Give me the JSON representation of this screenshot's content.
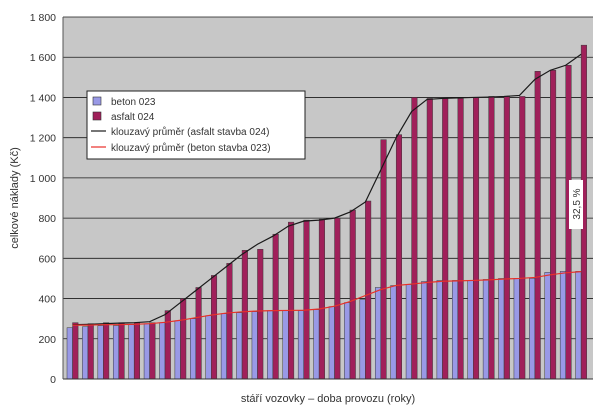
{
  "chart_data": {
    "type": "bar",
    "ylabel": "celkové náklady (Kč)",
    "xlabel": "stáří vozovky – doba provozu (roky)",
    "ylim": [
      0,
      1800
    ],
    "yticks": [
      0,
      200,
      400,
      600,
      800,
      1000,
      1200,
      1400,
      1600,
      1800
    ],
    "ytick_labels": [
      "0",
      "200",
      "400",
      "600",
      "800",
      "1 000",
      "1 200",
      "1 400",
      "1 600",
      "1 800"
    ],
    "grid": "horizontal",
    "legend_position": "left",
    "annotation": "32,5 %",
    "series": [
      {
        "name": "beton 023",
        "kind": "bar",
        "color": "#9999e6",
        "values": [
          255,
          260,
          265,
          265,
          270,
          275,
          280,
          290,
          300,
          315,
          325,
          330,
          335,
          340,
          340,
          340,
          345,
          360,
          380,
          395,
          455,
          465,
          470,
          485,
          490,
          490,
          490,
          495,
          500,
          500,
          500,
          530,
          535,
          535
        ]
      },
      {
        "name": "asfalt 024",
        "kind": "bar",
        "color": "#a0205a",
        "values": [
          280,
          275,
          280,
          280,
          280,
          280,
          340,
          400,
          455,
          515,
          575,
          640,
          645,
          720,
          780,
          790,
          795,
          800,
          840,
          885,
          1190,
          1215,
          1400,
          1395,
          1395,
          1395,
          1400,
          1405,
          1405,
          1405,
          1530,
          1535,
          1560,
          1660
        ]
      },
      {
        "name": "klouzavý průměr (asfalt stavba 024)",
        "kind": "line",
        "color": "#1a1a1a",
        "values": [
          270,
          272,
          275,
          278,
          280,
          285,
          320,
          380,
          440,
          500,
          560,
          620,
          670,
          710,
          760,
          785,
          790,
          800,
          830,
          880,
          1040,
          1200,
          1330,
          1390,
          1395,
          1398,
          1400,
          1402,
          1405,
          1410,
          1490,
          1535,
          1560,
          1615
        ]
      },
      {
        "name": "klouzavý průměr (beton stavba 023)",
        "kind": "line",
        "color": "#e8302a",
        "values": [
          268,
          268,
          270,
          270,
          272,
          275,
          282,
          292,
          305,
          318,
          328,
          334,
          338,
          340,
          341,
          342,
          348,
          362,
          385,
          415,
          445,
          465,
          472,
          480,
          486,
          488,
          490,
          493,
          497,
          500,
          505,
          518,
          528,
          534
        ]
      }
    ]
  }
}
